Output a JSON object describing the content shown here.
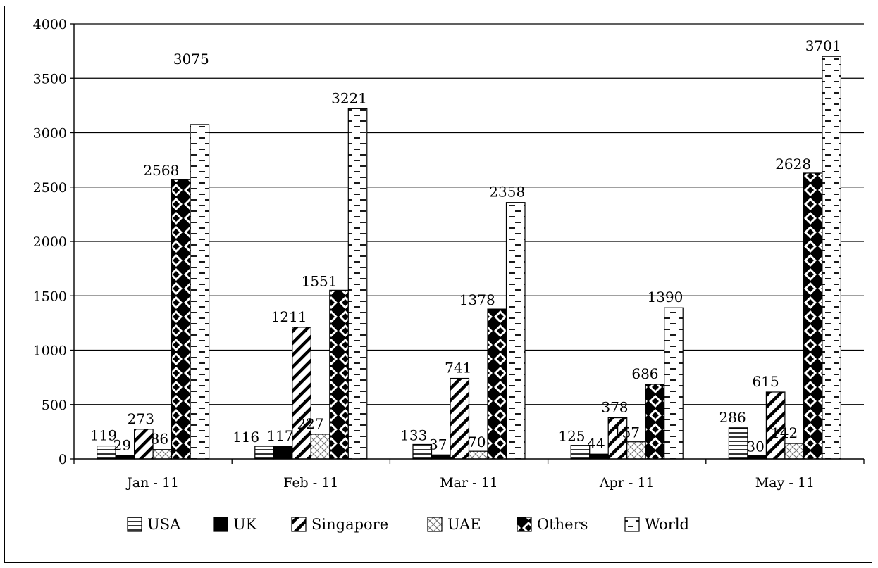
{
  "chart_data": {
    "type": "bar",
    "title": "",
    "xlabel": "",
    "ylabel": "",
    "categories": [
      "Jan - 11",
      "Feb - 11",
      "Mar - 11",
      "Apr  - 11",
      "May - 11"
    ],
    "ylim": [
      0,
      4000
    ],
    "yticks": [
      0,
      500,
      1000,
      1500,
      2000,
      2500,
      3000,
      3500,
      4000
    ],
    "grid": true,
    "legend_position": "bottom",
    "series": [
      {
        "name": "USA",
        "pattern": "horizontal-lines",
        "values": [
          119,
          116,
          133,
          125,
          286
        ]
      },
      {
        "name": "UK",
        "pattern": "solid-black",
        "values": [
          29,
          117,
          37,
          44,
          30
        ]
      },
      {
        "name": "Singapore",
        "pattern": "wide-diagonal",
        "values": [
          273,
          1211,
          741,
          378,
          615
        ]
      },
      {
        "name": "UAE",
        "pattern": "crosshatch",
        "values": [
          86,
          227,
          70,
          157,
          142
        ]
      },
      {
        "name": "Others",
        "pattern": "diamonds",
        "values": [
          2568,
          1551,
          1378,
          686,
          2628
        ]
      },
      {
        "name": "World",
        "pattern": "dashed-horizontal",
        "values": [
          3075,
          3221,
          2358,
          1390,
          3701
        ]
      }
    ],
    "colors": {
      "ink": "#000000",
      "background": "#ffffff"
    }
  }
}
